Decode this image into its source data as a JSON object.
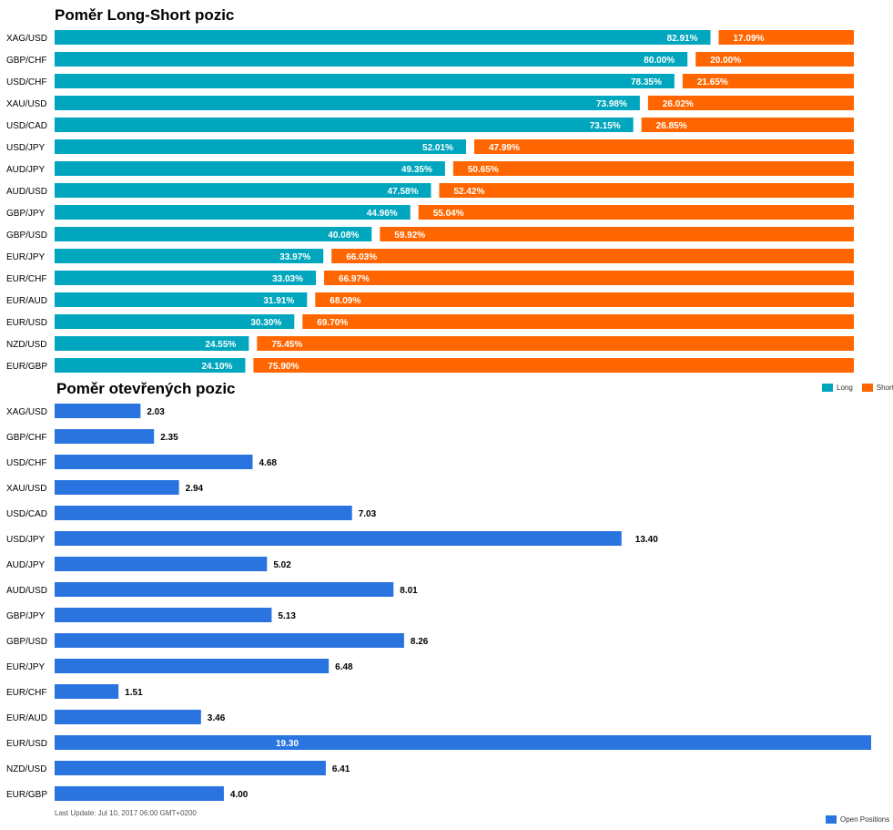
{
  "colors": {
    "long": "#00a6bd",
    "short": "#ff6600",
    "open": "#2a74df"
  },
  "footer": {
    "last_update": "Last Update: Jul 10, 2017 06:00 GMT+0200"
  },
  "chart_data": [
    {
      "type": "bar",
      "orientation": "horizontal",
      "stacked": true,
      "title": "Poměr Long-Short pozic",
      "legend": "bottom-right",
      "categories": [
        "XAG/USD",
        "GBP/CHF",
        "USD/CHF",
        "XAU/USD",
        "USD/CAD",
        "USD/JPY",
        "AUD/JPY",
        "AUD/USD",
        "GBP/JPY",
        "GBP/USD",
        "EUR/JPY",
        "EUR/CHF",
        "EUR/AUD",
        "EUR/USD",
        "NZD/USD",
        "EUR/GBP"
      ],
      "series": [
        {
          "name": "Long",
          "values": [
            82.91,
            80.0,
            78.35,
            73.98,
            73.15,
            52.01,
            49.35,
            47.58,
            44.96,
            40.08,
            33.97,
            33.03,
            31.91,
            30.3,
            24.55,
            24.1
          ],
          "labels": [
            "82.91%",
            "80.00%",
            "78.35%",
            "73.98%",
            "73.15%",
            "52.01%",
            "49.35%",
            "47.58%",
            "44.96%",
            "40.08%",
            "33.97%",
            "33.03%",
            "31.91%",
            "30.30%",
            "24.55%",
            "24.10%"
          ]
        },
        {
          "name": "Short",
          "values": [
            17.09,
            20.0,
            21.65,
            26.02,
            26.85,
            47.99,
            50.65,
            52.42,
            55.04,
            59.92,
            66.03,
            66.97,
            68.09,
            69.7,
            75.45,
            75.9
          ],
          "labels": [
            "17.09%",
            "20.00%",
            "21.65%",
            "26.02%",
            "26.85%",
            "47.99%",
            "50.65%",
            "52.42%",
            "55.04%",
            "59.92%",
            "66.03%",
            "66.97%",
            "68.09%",
            "69.70%",
            "75.45%",
            "75.90%"
          ]
        }
      ]
    },
    {
      "type": "bar",
      "orientation": "horizontal",
      "title": "Poměr otevřených pozic",
      "legend": "bottom-right",
      "xlim": [
        0,
        19.3
      ],
      "categories": [
        "XAG/USD",
        "GBP/CHF",
        "USD/CHF",
        "XAU/USD",
        "USD/CAD",
        "USD/JPY",
        "AUD/JPY",
        "AUD/USD",
        "GBP/JPY",
        "GBP/USD",
        "EUR/JPY",
        "EUR/CHF",
        "EUR/AUD",
        "EUR/USD",
        "NZD/USD",
        "EUR/GBP"
      ],
      "series": [
        {
          "name": "Open Positions",
          "values": [
            2.03,
            2.35,
            4.68,
            2.94,
            7.03,
            13.4,
            5.02,
            8.01,
            5.13,
            8.26,
            6.48,
            1.51,
            3.46,
            19.3,
            6.41,
            4.0
          ],
          "labels": [
            "2.03",
            "2.35",
            "4.68",
            "2.94",
            "7.03",
            "13.40",
            "5.02",
            "8.01",
            "5.13",
            "8.26",
            "6.48",
            "1.51",
            "3.46",
            "19.30",
            "6.41",
            "4.00"
          ]
        }
      ]
    }
  ]
}
